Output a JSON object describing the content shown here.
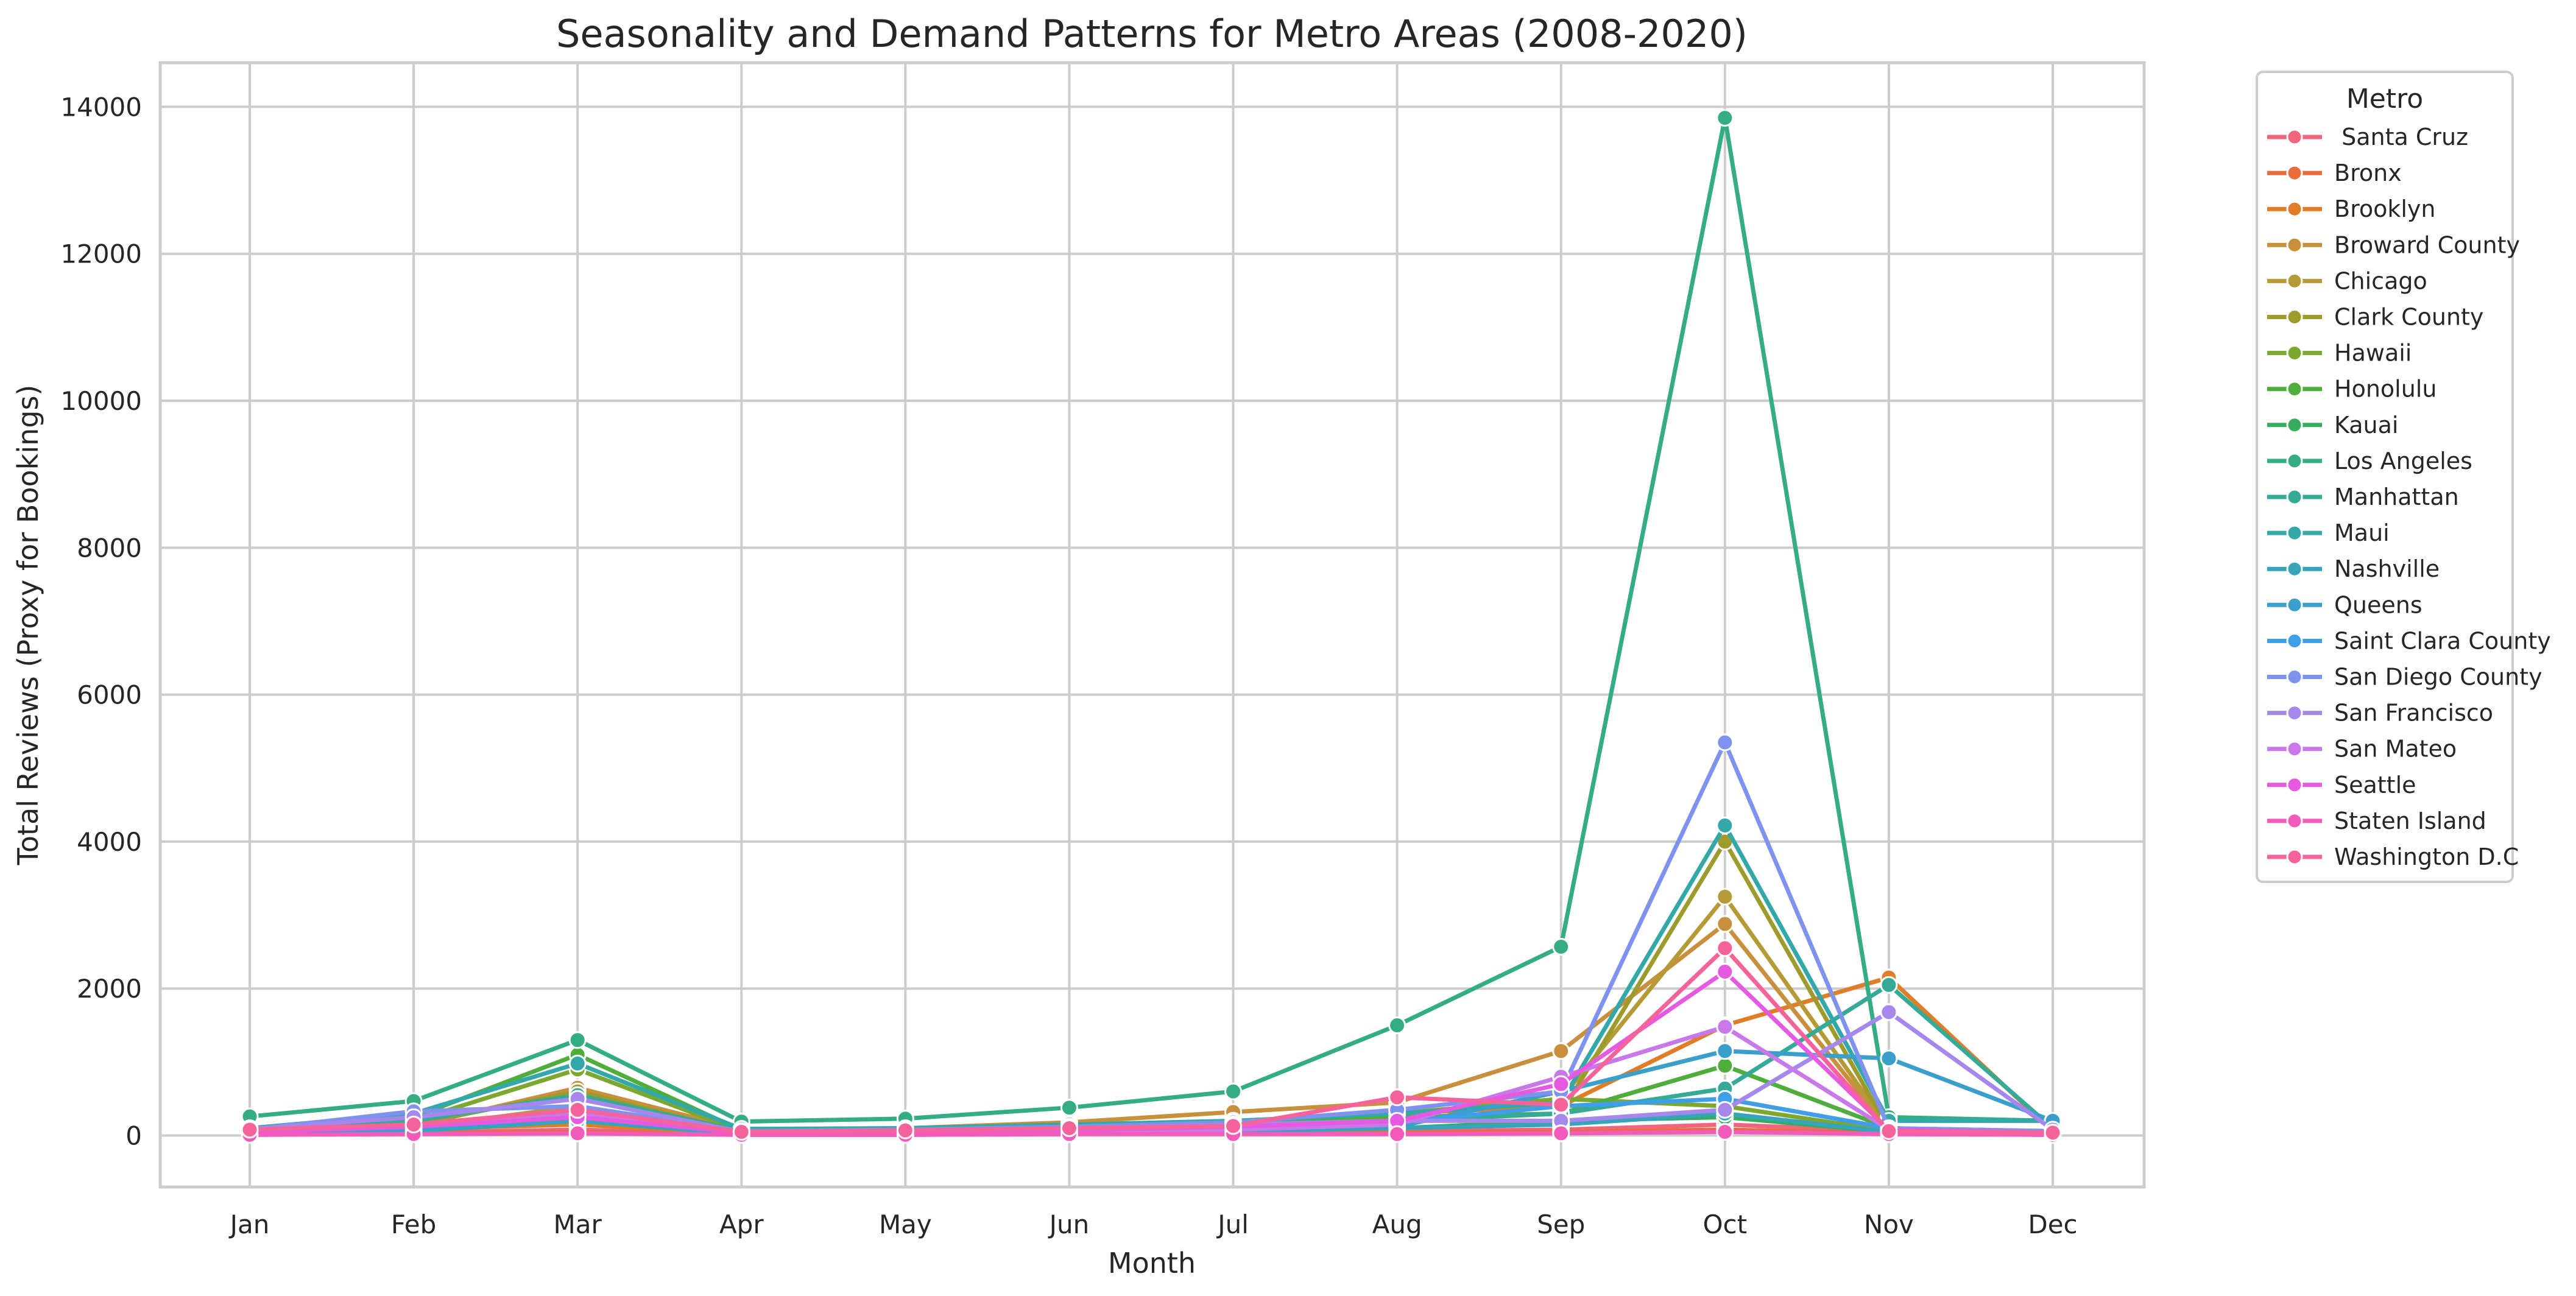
{
  "chart_data": {
    "type": "line",
    "title": "Seasonality and Demand Patterns for Metro Areas (2008-2020)",
    "xlabel": "Month",
    "ylabel": "Total Reviews (Proxy for Bookings)",
    "categories": [
      "Jan",
      "Feb",
      "Mar",
      "Apr",
      "May",
      "Jun",
      "Jul",
      "Aug",
      "Sep",
      "Oct",
      "Nov",
      "Dec"
    ],
    "ylim": [
      -700,
      14600
    ],
    "yticks": [
      0,
      2000,
      4000,
      6000,
      8000,
      10000,
      12000,
      14000
    ],
    "ytick_labels": [
      "0",
      "2000",
      "4000",
      "6000",
      "8000",
      "10000",
      "12000",
      "14000"
    ],
    "grid": true,
    "legend": {
      "title": "Metro",
      "placement": "outside-right"
    },
    "series": [
      {
        "name": " Santa Cruz",
        "color": "#f0657d",
        "values": [
          30,
          40,
          80,
          20,
          20,
          30,
          40,
          60,
          80,
          150,
          60,
          20
        ]
      },
      {
        "name": "Bronx",
        "color": "#ea6c3c",
        "values": [
          20,
          30,
          50,
          10,
          10,
          20,
          30,
          40,
          50,
          80,
          30,
          10
        ]
      },
      {
        "name": "Brooklyn",
        "color": "#df7d28",
        "values": [
          40,
          90,
          150,
          30,
          40,
          50,
          80,
          300,
          400,
          1500,
          2150,
          60
        ]
      },
      {
        "name": "Broward County",
        "color": "#c8903c",
        "values": [
          60,
          130,
          650,
          80,
          100,
          180,
          320,
          450,
          1150,
          2880,
          80,
          40
        ]
      },
      {
        "name": "Chicago",
        "color": "#b59a35",
        "values": [
          40,
          100,
          400,
          40,
          60,
          100,
          200,
          300,
          500,
          3250,
          100,
          40
        ]
      },
      {
        "name": "Clark County",
        "color": "#9c9b2c",
        "values": [
          50,
          150,
          600,
          50,
          70,
          100,
          150,
          200,
          300,
          4000,
          90,
          40
        ]
      },
      {
        "name": "Hawaii",
        "color": "#7da82f",
        "values": [
          60,
          200,
          900,
          60,
          80,
          120,
          180,
          300,
          500,
          400,
          60,
          50
        ]
      },
      {
        "name": "Honolulu",
        "color": "#4fad3c",
        "values": [
          70,
          250,
          1100,
          70,
          90,
          130,
          200,
          250,
          300,
          950,
          100,
          60
        ]
      },
      {
        "name": "Kauai",
        "color": "#36ad5e",
        "values": [
          30,
          80,
          300,
          30,
          40,
          60,
          80,
          100,
          200,
          250,
          50,
          30
        ]
      },
      {
        "name": "Los Angeles",
        "color": "#35ad82",
        "values": [
          260,
          470,
          1300,
          190,
          230,
          380,
          600,
          1500,
          2570,
          13850,
          250,
          200
        ]
      },
      {
        "name": "Manhattan",
        "color": "#35aa97",
        "values": [
          80,
          200,
          550,
          60,
          70,
          100,
          150,
          200,
          300,
          640,
          2050,
          100
        ]
      },
      {
        "name": "Maui",
        "color": "#33a8a8",
        "values": [
          100,
          300,
          980,
          90,
          100,
          150,
          200,
          300,
          450,
          4220,
          200,
          200
        ]
      },
      {
        "name": "Nashville",
        "color": "#37a5b9",
        "values": [
          30,
          60,
          200,
          20,
          30,
          50,
          60,
          100,
          150,
          300,
          50,
          30
        ]
      },
      {
        "name": "Queens",
        "color": "#3aa0cb",
        "values": [
          40,
          90,
          250,
          30,
          40,
          60,
          80,
          120,
          600,
          1150,
          1050,
          200
        ]
      },
      {
        "name": "Saint Clara County",
        "color": "#3f9ee8",
        "values": [
          50,
          120,
          300,
          40,
          50,
          80,
          120,
          180,
          400,
          500,
          100,
          40
        ]
      },
      {
        "name": "San Diego County",
        "color": "#7f92ee",
        "values": [
          80,
          330,
          400,
          60,
          80,
          120,
          180,
          350,
          600,
          5350,
          100,
          60
        ]
      },
      {
        "name": "San Francisco",
        "color": "#a687eb",
        "values": [
          90,
          250,
          500,
          50,
          70,
          100,
          150,
          200,
          200,
          350,
          1680,
          80
        ]
      },
      {
        "name": "San Mateo",
        "color": "#c978ea",
        "values": [
          40,
          150,
          300,
          30,
          40,
          60,
          80,
          150,
          800,
          1480,
          80,
          30
        ]
      },
      {
        "name": "Seattle",
        "color": "#e55ae1",
        "values": [
          50,
          120,
          250,
          40,
          50,
          70,
          120,
          200,
          700,
          2230,
          80,
          40
        ]
      },
      {
        "name": "Staten Island",
        "color": "#f25bba",
        "values": [
          10,
          20,
          30,
          10,
          10,
          20,
          20,
          20,
          30,
          50,
          20,
          10
        ]
      },
      {
        "name": "Washington D.C",
        "color": "#f6639a",
        "values": [
          80,
          150,
          350,
          50,
          70,
          100,
          130,
          520,
          420,
          2550,
          60,
          40
        ]
      }
    ]
  }
}
